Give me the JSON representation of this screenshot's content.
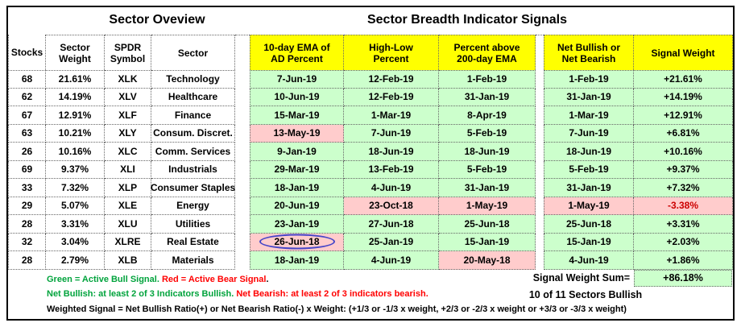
{
  "colors": {
    "header_yellow": "#ffff00",
    "bull_green_bg": "#ccffcc",
    "bear_pink_bg": "#ffcccc",
    "bear_red_text": "#cc0000",
    "note_green": "#00a33c",
    "note_red": "#ff0000",
    "highlight_ellipse_blue": "#4646c8"
  },
  "chart_data": {
    "type": "table",
    "titles": {
      "left": "Sector Oveview",
      "right": "Sector Breadth Indicator Signals"
    },
    "columns": [
      {
        "lines": [
          "Stocks"
        ],
        "group": "plain"
      },
      {
        "lines": [
          "Sector",
          "Weight"
        ],
        "group": "plain"
      },
      {
        "lines": [
          "SPDR",
          "Symbol"
        ],
        "group": "plain"
      },
      {
        "lines": [
          "Sector"
        ],
        "group": "plain"
      },
      {
        "lines": [
          "10-day EMA of",
          "AD Percent"
        ],
        "group": "signal"
      },
      {
        "lines": [
          "High-Low",
          "Percent"
        ],
        "group": "signal"
      },
      {
        "lines": [
          "Percent above",
          "200-day EMA"
        ],
        "group": "signal"
      },
      {
        "lines": [
          "Net Bullish or",
          "Net Bearish"
        ],
        "group": "signal"
      },
      {
        "lines": [
          "Signal Weight"
        ],
        "group": "signal"
      }
    ],
    "rows": [
      {
        "cells": [
          "68",
          "21.61%",
          "XLK",
          "Technology",
          "7-Jun-19",
          "12-Feb-19",
          "1-Feb-19",
          "1-Feb-19",
          "+21.61%"
        ],
        "states": [
          "w",
          "w",
          "w",
          "w",
          "g",
          "g",
          "g",
          "g",
          "g"
        ],
        "circled": -1
      },
      {
        "cells": [
          "62",
          "14.19%",
          "XLV",
          "Healthcare",
          "10-Jun-19",
          "12-Feb-19",
          "31-Jan-19",
          "31-Jan-19",
          "+14.19%"
        ],
        "states": [
          "w",
          "w",
          "w",
          "w",
          "g",
          "g",
          "g",
          "g",
          "g"
        ],
        "circled": -1
      },
      {
        "cells": [
          "67",
          "12.91%",
          "XLF",
          "Finance",
          "15-Mar-19",
          "1-Mar-19",
          "8-Apr-19",
          "1-Mar-19",
          "+12.91%"
        ],
        "states": [
          "w",
          "w",
          "w",
          "w",
          "g",
          "g",
          "g",
          "g",
          "g"
        ],
        "circled": -1
      },
      {
        "cells": [
          "63",
          "10.21%",
          "XLY",
          "Consum. Discret.",
          "13-May-19",
          "7-Jun-19",
          "5-Feb-19",
          "7-Jun-19",
          "+6.81%"
        ],
        "states": [
          "w",
          "w",
          "w",
          "w",
          "r",
          "g",
          "g",
          "g",
          "g"
        ],
        "circled": -1
      },
      {
        "cells": [
          "26",
          "10.16%",
          "XLC",
          "Comm. Services",
          "9-Jan-19",
          "18-Jun-19",
          "18-Jun-19",
          "18-Jun-19",
          "+10.16%"
        ],
        "states": [
          "w",
          "w",
          "w",
          "w",
          "g",
          "g",
          "g",
          "g",
          "g"
        ],
        "circled": -1
      },
      {
        "cells": [
          "69",
          "9.37%",
          "XLI",
          "Industrials",
          "29-Mar-19",
          "13-Feb-19",
          "5-Feb-19",
          "5-Feb-19",
          "+9.37%"
        ],
        "states": [
          "w",
          "w",
          "w",
          "w",
          "g",
          "g",
          "g",
          "g",
          "g"
        ],
        "circled": -1
      },
      {
        "cells": [
          "33",
          "7.32%",
          "XLP",
          "Consumer Staples",
          "18-Jan-19",
          "4-Jun-19",
          "31-Jan-19",
          "31-Jan-19",
          "+7.32%"
        ],
        "states": [
          "w",
          "w",
          "w",
          "w",
          "g",
          "g",
          "g",
          "g",
          "g"
        ],
        "circled": -1
      },
      {
        "cells": [
          "29",
          "5.07%",
          "XLE",
          "Energy",
          "20-Jun-19",
          "23-Oct-18",
          "1-May-19",
          "1-May-19",
          "-3.38%"
        ],
        "states": [
          "w",
          "w",
          "w",
          "w",
          "g",
          "r",
          "r",
          "r",
          "rr"
        ],
        "circled": -1
      },
      {
        "cells": [
          "28",
          "3.31%",
          "XLU",
          "Utilities",
          "23-Jan-19",
          "27-Jun-18",
          "25-Jun-18",
          "25-Jun-18",
          "+3.31%"
        ],
        "states": [
          "w",
          "w",
          "w",
          "w",
          "g",
          "g",
          "g",
          "g",
          "g"
        ],
        "circled": -1
      },
      {
        "cells": [
          "32",
          "3.04%",
          "XLRE",
          "Real Estate",
          "26-Jun-18",
          "25-Jan-19",
          "15-Jan-19",
          "15-Jan-19",
          "+2.03%"
        ],
        "states": [
          "w",
          "w",
          "w",
          "w",
          "r",
          "g",
          "g",
          "g",
          "g"
        ],
        "circled": 4
      },
      {
        "cells": [
          "28",
          "2.79%",
          "XLB",
          "Materials",
          "18-Jan-19",
          "4-Jun-19",
          "20-May-18",
          "4-Jun-19",
          "+1.86%"
        ],
        "states": [
          "w",
          "w",
          "w",
          "w",
          "g",
          "g",
          "r",
          "g",
          "g"
        ],
        "circled": -1
      }
    ],
    "summary": {
      "sum_label": "Signal Weight Sum=",
      "sum_value": "+86.18%",
      "sectors_bullish": "10 of 11 Sectors Bullish"
    },
    "notes": [
      {
        "segments": [
          {
            "text": "Green = Active Bull Signal.",
            "color": "green"
          },
          {
            "text": " Red = Active Bear Signal",
            "color": "red"
          },
          {
            "text": ".",
            "color": "black"
          }
        ]
      },
      {
        "segments": [
          {
            "text": "Net Bullish: at least 2 of 3 Indicators Bullish.",
            "color": "green"
          },
          {
            "text": " Net Bearish: at least 2 of 3 indicators bearish.",
            "color": "red"
          }
        ]
      },
      {
        "segments": [
          {
            "text": "Weighted Signal = Net Bullish Ratio(+) or Net Bearish Ratio(-) x Weight: (+1/3 or -1/3 x weight, +2/3 or -2/3 x weight or +3/3 or -3/3 x weight)",
            "color": "black"
          }
        ]
      }
    ]
  }
}
